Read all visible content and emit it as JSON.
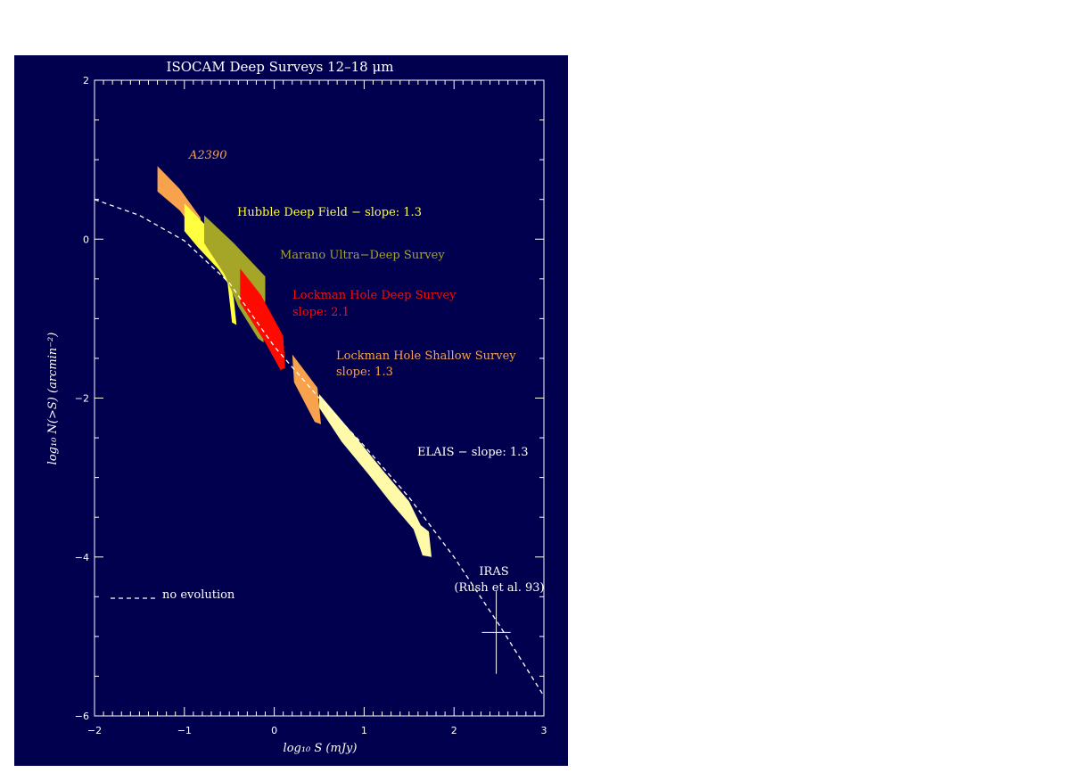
{
  "colors": {
    "background": "#00004e",
    "axis": "#ffffff",
    "a2390": "#f9a24c",
    "hdf": "#ffff40",
    "marano": "#a5a528",
    "lockman_deep": "#ff0a00",
    "lockman_shallow": "#f9a24c",
    "elais": "#fffaa8",
    "no_evolution": "#ffffff"
  },
  "chart_data": {
    "type": "area",
    "title": "ISOCAM Deep Surveys 12–18 μm",
    "xlabel": "log₁₀ S (mJy)",
    "ylabel": "log₁₀ N(>S) (arcmin⁻²)",
    "xlim": [
      -2,
      3
    ],
    "ylim": [
      -6,
      2
    ],
    "x_ticks": [
      -2,
      -1,
      0,
      1,
      2,
      3
    ],
    "y_ticks": [
      -6,
      -4,
      -2,
      0,
      2
    ],
    "x_tick_labels": [
      "−2",
      "−1",
      "0",
      "1",
      "2",
      "3"
    ],
    "y_tick_labels": [
      "−6",
      "−4",
      "−2",
      "0",
      "2"
    ],
    "grid": false,
    "series": [
      {
        "name": "A2390",
        "label": "A2390",
        "color_key": "a2390",
        "polygon": [
          [
            -1.3,
            0.92
          ],
          [
            -1.05,
            0.63
          ],
          [
            -0.82,
            0.27
          ],
          [
            -0.82,
            0.0
          ],
          [
            -1.05,
            0.36
          ],
          [
            -1.3,
            0.6
          ]
        ]
      },
      {
        "name": "Hubble Deep Field",
        "label": "Hubble Deep Field − slope: 1.3",
        "color_key": "hdf",
        "polygon": [
          [
            -1.0,
            0.45
          ],
          [
            -0.7,
            0.1
          ],
          [
            -0.55,
            -0.25
          ],
          [
            -0.45,
            -0.75
          ],
          [
            -0.42,
            -1.08
          ],
          [
            -0.47,
            -1.05
          ],
          [
            -0.52,
            -0.55
          ],
          [
            -0.62,
            -0.38
          ],
          [
            -0.85,
            -0.1
          ],
          [
            -1.0,
            0.1
          ]
        ]
      },
      {
        "name": "Marano Ultra-Deep Survey",
        "label": "Marano Ultra−Deep Survey",
        "color_key": "marano",
        "polygon": [
          [
            -0.78,
            0.3
          ],
          [
            -0.45,
            -0.05
          ],
          [
            -0.1,
            -0.47
          ],
          [
            -0.1,
            -0.75
          ],
          [
            -0.12,
            -1.3
          ],
          [
            -0.18,
            -1.25
          ],
          [
            -0.4,
            -0.85
          ],
          [
            -0.55,
            -0.45
          ],
          [
            -0.78,
            -0.05
          ]
        ]
      },
      {
        "name": "Lockman Hole Deep Survey",
        "label": "Lockman Hole Deep Survey",
        "note": "slope: 2.1",
        "color_key": "lockman_deep",
        "polygon": [
          [
            -0.38,
            -0.37
          ],
          [
            -0.15,
            -0.7
          ],
          [
            0.1,
            -1.22
          ],
          [
            0.12,
            -1.62
          ],
          [
            0.07,
            -1.65
          ],
          [
            -0.1,
            -1.3
          ],
          [
            -0.38,
            -0.8
          ]
        ]
      },
      {
        "name": "Lockman Hole Shallow Survey",
        "label": "Lockman Hole Shallow Survey",
        "note": "slope: 1.3",
        "color_key": "lockman_shallow",
        "polygon": [
          [
            0.2,
            -1.45
          ],
          [
            0.48,
            -1.87
          ],
          [
            0.52,
            -2.33
          ],
          [
            0.45,
            -2.3
          ],
          [
            0.22,
            -1.8
          ]
        ]
      },
      {
        "name": "ELAIS",
        "label": "ELAIS − slope: 1.3",
        "color_key": "elais",
        "polygon": [
          [
            0.5,
            -1.95
          ],
          [
            0.9,
            -2.48
          ],
          [
            1.2,
            -2.9
          ],
          [
            1.5,
            -3.3
          ],
          [
            1.63,
            -3.6
          ],
          [
            1.72,
            -3.68
          ],
          [
            1.75,
            -4.0
          ],
          [
            1.65,
            -3.98
          ],
          [
            1.55,
            -3.65
          ],
          [
            1.3,
            -3.32
          ],
          [
            1.05,
            -2.96
          ],
          [
            0.75,
            -2.55
          ],
          [
            0.5,
            -2.12
          ]
        ]
      },
      {
        "name": "no evolution",
        "label": "no evolution",
        "color_key": "no_evolution",
        "style": "dashed",
        "x": [
          -2.0,
          -1.5,
          -1.0,
          -0.5,
          0.0,
          0.5,
          1.0,
          1.5,
          2.0,
          2.5,
          3.0
        ],
        "y": [
          0.5,
          0.3,
          -0.02,
          -0.55,
          -1.35,
          -2.0,
          -2.6,
          -3.25,
          -4.0,
          -4.85,
          -5.75
        ]
      },
      {
        "name": "IRAS",
        "label": "IRAS",
        "note": "(Rush et al. 93)",
        "type": "errorbar",
        "x": 2.47,
        "y": -4.95,
        "xerr": 0.16,
        "yerr": 0.52
      }
    ]
  }
}
